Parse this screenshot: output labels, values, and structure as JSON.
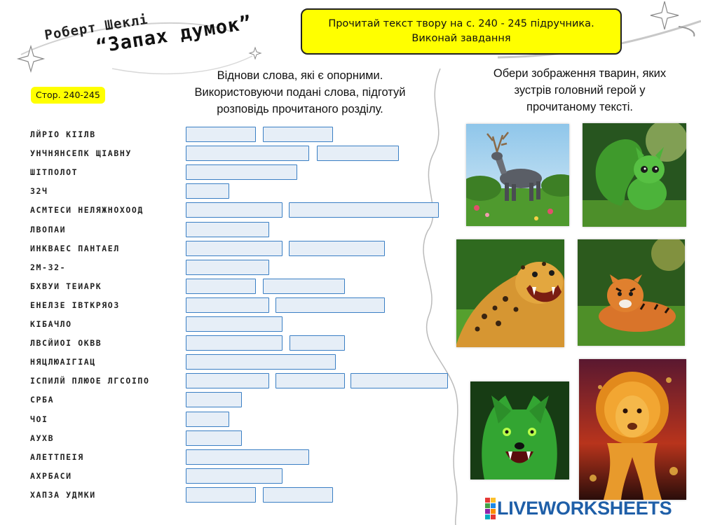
{
  "header": {
    "author": "Роберт Шеклі",
    "story_title": "“Запах думок”"
  },
  "task_box": {
    "line1": "Прочитай текст твору на с. 240 - 245 підручника.",
    "line2": "Виконай завдання"
  },
  "left_instruction": {
    "line1": "Віднови слова, які є опорними.",
    "line2": "Використовуючи подані слова, підготуй",
    "line3": "розповідь прочитаного розділу."
  },
  "right_instruction": {
    "line1": "Обери зображення тварин, яких",
    "line2": "зустрів головний герой у",
    "line3": "прочитаному тексті."
  },
  "page_badge": "Стор.  240-245",
  "anagrams": [
    "ЛЙРІО КІІЛВ",
    "УНЧНЯНСЕПК ЩІАВНУ",
    "ШІТПОЛОТ",
    "З2Ч",
    "АСМТЕСИ НЕЛЯЖНОХООД",
    "ЛВОПАИ",
    "ИНКВАЕС ПАНТАЕЛ",
    "2М-32-",
    "БХВУИ ТЕИАРК",
    "ЕНЕЛЗЕ ІВТКРЯОЗ",
    "КІБАЧЛО",
    "ЛВСЙИОІ ОКВВ",
    "НЯЦЛЮАІГІАЦ",
    "ІСПИЛЙ ПЛЮОЕ ЛГСОІПО",
    "СРБА",
    "ЧОІ",
    "АУХВ",
    "АЛЕТТПЕІЯ",
    "АХРБАСИ",
    "ХАПЗА УДМКИ"
  ],
  "answers": [
    [
      "",
      ""
    ],
    [
      "",
      ""
    ],
    [
      ""
    ],
    [
      ""
    ],
    [
      "",
      ""
    ],
    [
      ""
    ],
    [
      "",
      ""
    ],
    [
      ""
    ],
    [
      "",
      ""
    ],
    [
      "",
      ""
    ],
    [
      ""
    ],
    [
      "",
      ""
    ],
    [
      ""
    ],
    [
      "",
      "",
      ""
    ],
    [
      ""
    ],
    [
      ""
    ],
    [
      ""
    ],
    [
      ""
    ],
    [
      ""
    ],
    [
      "",
      ""
    ]
  ],
  "animal_images": [
    "deer-image",
    "green-squirrel-image",
    "leopard-image",
    "tiger-image",
    "green-wolf-image",
    "fire-lion-image"
  ],
  "brand": {
    "logo_text": "LIVEWORKSHEETS",
    "logo_color": "#1f5fa8",
    "logo_blocks": [
      "#e53935",
      "#fbc02d",
      "#43a047",
      "#1e88e5",
      "#8e24aa",
      "#fb8c00",
      "#00acc1",
      "#e53935"
    ]
  },
  "colors": {
    "highlight": "#ffff00",
    "input_border": "#3a7fc4",
    "input_fill": "#e6eef7"
  }
}
